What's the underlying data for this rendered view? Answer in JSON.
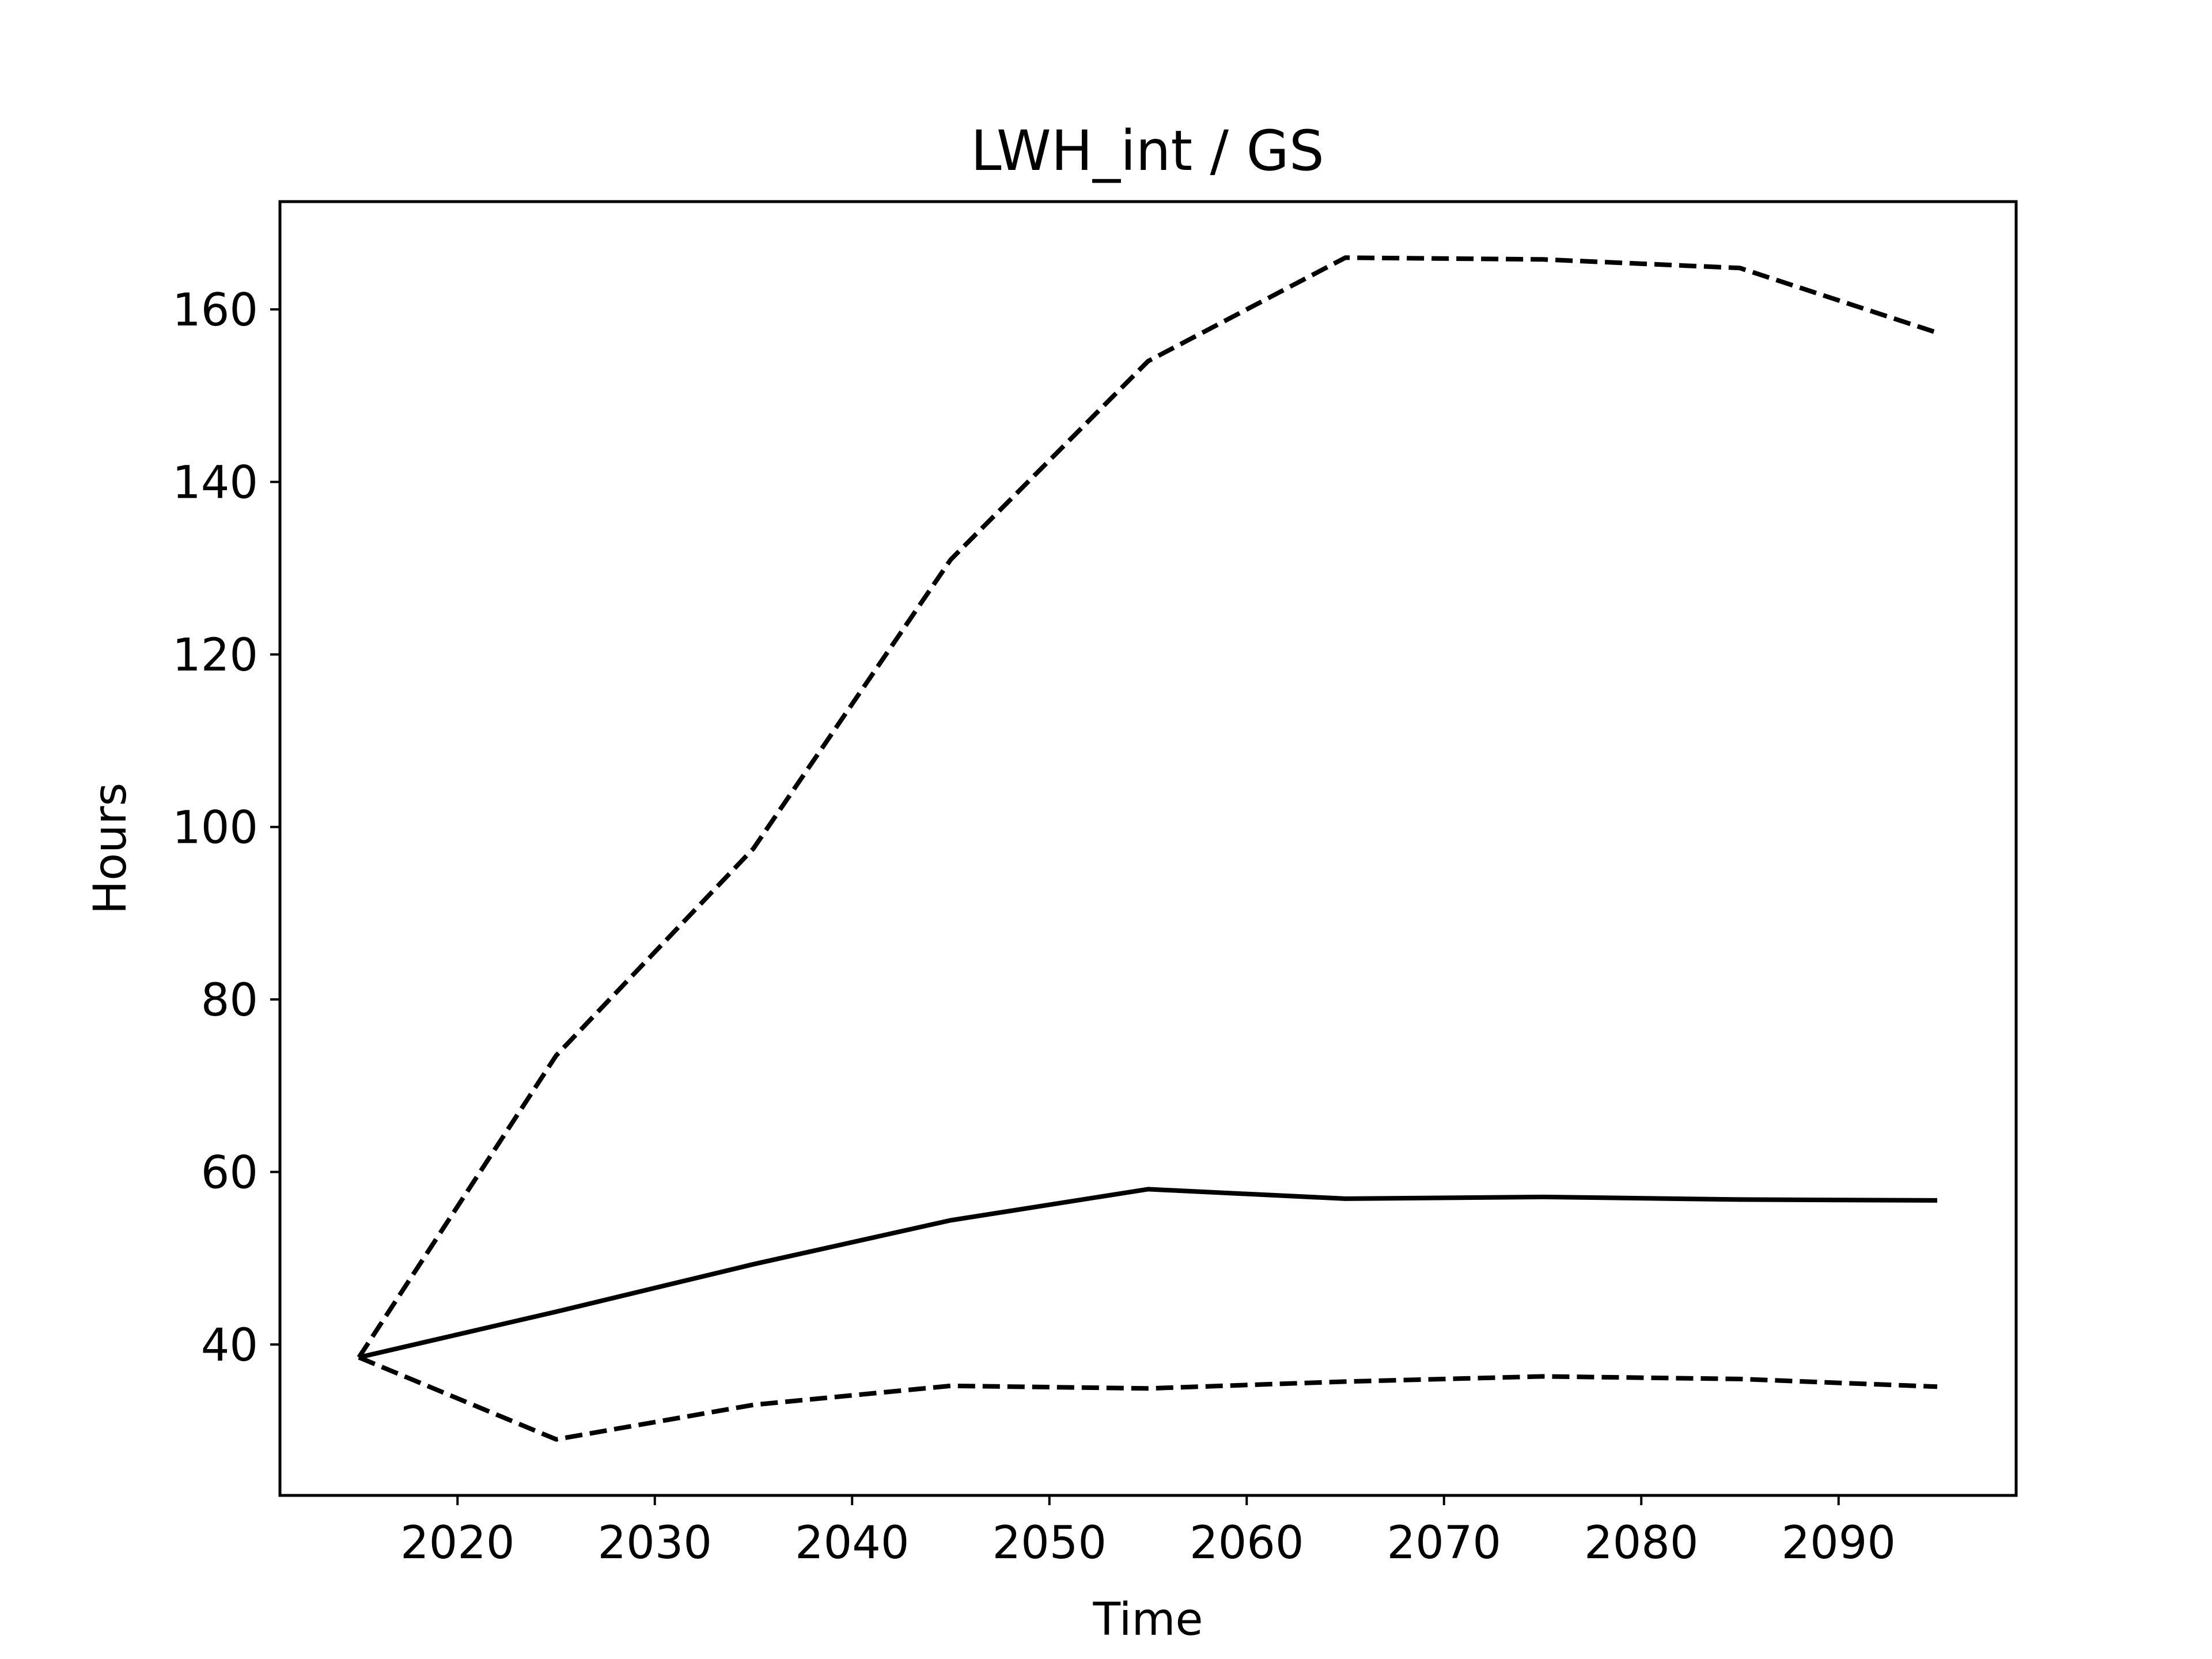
{
  "chart_data": {
    "type": "line",
    "title": "LWH_int / GS",
    "xlabel": "Time",
    "ylabel": "Hours",
    "xlim": [
      2011,
      2099
    ],
    "ylim": [
      22.5,
      172.5
    ],
    "xticks": [
      2020,
      2030,
      2040,
      2050,
      2060,
      2070,
      2080,
      2090
    ],
    "yticks": [
      40,
      60,
      80,
      100,
      120,
      140,
      160
    ],
    "grid": false,
    "legend": null,
    "x": [
      2015,
      2025,
      2035,
      2045,
      2055,
      2065,
      2075,
      2085,
      2095
    ],
    "series": [
      {
        "style": "solid",
        "color": "#000000",
        "values": [
          38.5,
          43.8,
          49.3,
          54.4,
          58.0,
          56.9,
          57.1,
          56.8,
          56.7
        ]
      },
      {
        "style": "dashed",
        "color": "#000000",
        "values": [
          38.5,
          73.5,
          97.5,
          131.0,
          154.0,
          166.0,
          165.8,
          164.8,
          157.3
        ]
      },
      {
        "style": "dashed",
        "color": "#000000",
        "values": [
          38.5,
          29.0,
          33.0,
          35.2,
          34.9,
          35.7,
          36.3,
          36.0,
          35.1
        ]
      }
    ]
  }
}
